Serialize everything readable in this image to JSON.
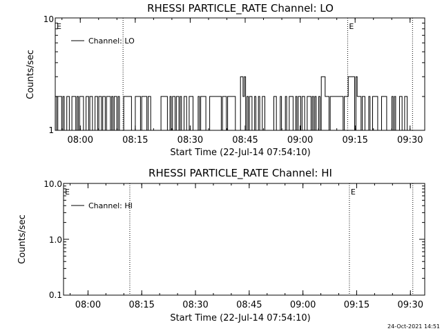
{
  "footer": {
    "timestamp": "24-Oct-2021 14:51"
  },
  "chart_data": [
    {
      "type": "line",
      "title": "RHESSI PARTICLE_RATE Channel: LO",
      "xlabel": "Start Time (22-Jul-14 07:54:10)",
      "ylabel": "Counts/sec",
      "yscale": "log",
      "ylim": [
        1,
        10
      ],
      "ytick_labels": [
        "1",
        "10"
      ],
      "xlim_minutes": [
        -1,
        99.83
      ],
      "xtick_labels": [
        "08:00",
        "08:15",
        "08:30",
        "08:45",
        "09:00",
        "09:15",
        "09:30"
      ],
      "xtick_minutes": [
        5.83,
        20.83,
        35.83,
        50.83,
        65.83,
        80.83,
        95.83
      ],
      "event_lines_minutes": [
        17.5,
        78.8,
        96.5
      ],
      "event_marker": "E",
      "series": [
        {
          "name": "Channel: LO"
        }
      ],
      "legend_position": "top-left",
      "grid": false
    },
    {
      "type": "line",
      "title": "RHESSI PARTICLE_RATE Channel: HI",
      "xlabel": "Start Time (22-Jul-14 07:54:10)",
      "ylabel": "Counts/sec",
      "yscale": "log",
      "ylim": [
        0.1,
        10
      ],
      "ytick_labels": [
        "0.1",
        "1.0",
        "10.0"
      ],
      "xlim_minutes": [
        -1,
        99.83
      ],
      "xtick_labels": [
        "08:00",
        "08:15",
        "08:30",
        "08:45",
        "09:00",
        "09:15",
        "09:30"
      ],
      "xtick_minutes": [
        5.83,
        20.83,
        35.83,
        50.83,
        65.83,
        80.83,
        95.83
      ],
      "event_lines_minutes": [
        17.5,
        78.8,
        96.5
      ],
      "event_marker": "E",
      "series": [
        {
          "name": "Channel: HI"
        }
      ],
      "legend_position": "top-left",
      "grid": false
    }
  ]
}
